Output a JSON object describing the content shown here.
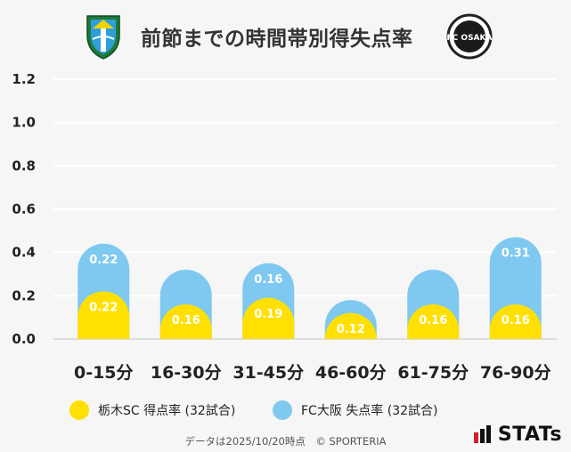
{
  "header": {
    "title": "前節までの時間帯別得失点率"
  },
  "logos": {
    "left": "tochigi-sc-crest",
    "right": "fc-osaka-crest",
    "right_text": "FC OSAKA"
  },
  "legend": {
    "items": [
      {
        "label": "栃木SC 得点率 (32試合)",
        "color": "#ffe000"
      },
      {
        "label": "FC大阪 失点率 (32試合)",
        "color": "#7fc8f0"
      }
    ]
  },
  "footer": {
    "note": "データは2025/10/20時点　© SPORTERIA",
    "brand": "STATs"
  },
  "colors": {
    "yellow": "#ffe000",
    "blue": "#7fc8f0",
    "grid": "#ffffff",
    "background": "#f6f6f6"
  },
  "chart_data": {
    "type": "bar",
    "stacked": true,
    "categories": [
      "0-15分",
      "16-30分",
      "31-45分",
      "46-60分",
      "61-75分",
      "76-90分"
    ],
    "series": [
      {
        "name": "栃木SC 得点率 (32試合)",
        "values": [
          0.22,
          0.16,
          0.19,
          0.12,
          0.16,
          0.16
        ],
        "color": "#ffe000"
      },
      {
        "name": "FC大阪 失点率 (32試合)",
        "values": [
          0.22,
          0.16,
          0.16,
          0.06,
          0.16,
          0.31
        ],
        "color": "#7fc8f0"
      }
    ],
    "data_labels": [
      [
        "0.22",
        "0.16",
        "0.19",
        "0.12",
        "0.16",
        "0.16"
      ],
      [
        "0.22",
        "",
        "0.16",
        "",
        "",
        "0.31"
      ]
    ],
    "yticks": [
      "0.0",
      "0.2",
      "0.4",
      "0.6",
      "0.8",
      "1.0",
      "1.2"
    ],
    "ylim": [
      0,
      1.2
    ],
    "grid": true,
    "legend_position": "bottom"
  }
}
